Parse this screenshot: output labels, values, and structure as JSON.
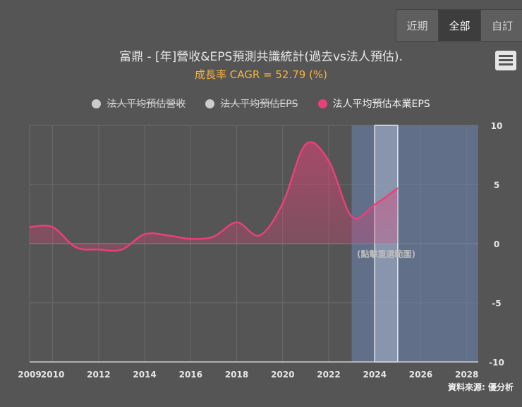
{
  "range_tabs": [
    {
      "label": "近期",
      "active": false
    },
    {
      "label": "全部",
      "active": true
    },
    {
      "label": "自訂",
      "active": false
    }
  ],
  "menu_icon": "hamburger-menu-icon",
  "credit": "資料來源: 優分析",
  "chart_data": {
    "type": "area",
    "title": "富鼎 - [年]營收&EPS預測共識統計(過去vs法人預估).",
    "subtitle": "成長率 CAGR = 52.79 (%)",
    "legend": [
      {
        "name": "法人平均預估營收",
        "visible": false,
        "color": "#cccccc"
      },
      {
        "name": "法人平均預估EPS",
        "visible": false,
        "color": "#cccccc"
      },
      {
        "name": "法人平均預估本業EPS",
        "visible": true,
        "color": "#e8417a"
      }
    ],
    "legend_position": "top-center",
    "xlim": [
      2009,
      2028.5
    ],
    "x_ticks": [
      2009,
      2010,
      2012,
      2014,
      2016,
      2018,
      2020,
      2022,
      2024,
      2026,
      2028
    ],
    "x_tick_labels": [
      "2009",
      "2010",
      "2012",
      "2014",
      "2016",
      "2018",
      "2020",
      "2022",
      "2024",
      "2026",
      "2028"
    ],
    "ylim": [
      -10,
      10
    ],
    "y_ticks": [
      10,
      5,
      0,
      -5,
      -10
    ],
    "y_axis_side": "right",
    "grid": true,
    "series": [
      {
        "name": "法人平均預估本業EPS",
        "x": [
          2009,
          2010,
          2011,
          2012,
          2013,
          2014,
          2015,
          2016,
          2017,
          2018,
          2019,
          2020,
          2021,
          2022,
          2023,
          2024,
          2025
        ],
        "values": [
          1.4,
          1.4,
          -0.3,
          -0.5,
          -0.5,
          0.8,
          0.7,
          0.4,
          0.6,
          1.8,
          0.7,
          3.4,
          8.4,
          7.0,
          2.3,
          3.3,
          4.7
        ]
      }
    ],
    "forecast_band": [
      2023,
      2028.5
    ],
    "selected_band": [
      2024,
      2025
    ],
    "zoom_hint": "(點擊重選範圍)"
  }
}
